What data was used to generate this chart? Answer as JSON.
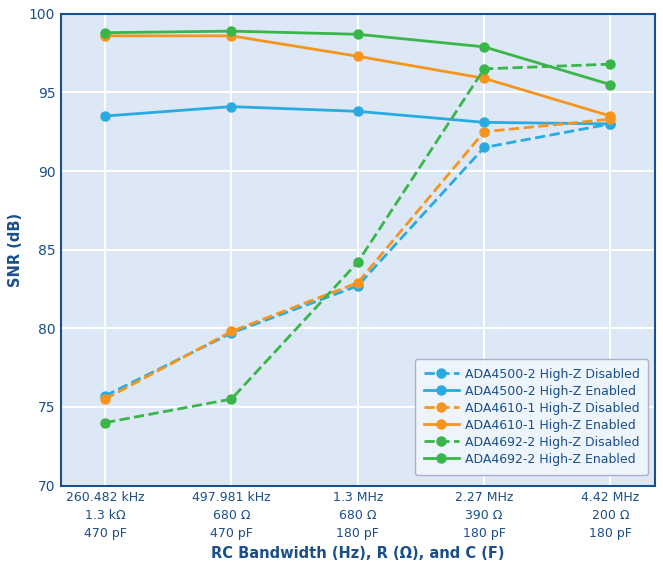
{
  "x_positions": [
    0,
    1,
    2,
    3,
    4
  ],
  "x_labels": [
    "260.482 kHz\n1.3 kΩ\n470 pF",
    "497.981 kHz\n680 Ω\n470 pF",
    "1.3 MHz\n680 Ω\n180 pF",
    "2.27 MHz\n390 Ω\n180 pF",
    "4.42 MHz\n200 Ω\n180 pF"
  ],
  "series": [
    {
      "label": "ADA4500-2 High-Z Disabled",
      "color": "#29abe2",
      "linestyle": "--",
      "marker": "o",
      "values": [
        75.7,
        79.7,
        82.7,
        91.5,
        93.0
      ]
    },
    {
      "label": "ADA4500-2 High-Z Enabled",
      "color": "#29abe2",
      "linestyle": "-",
      "marker": "o",
      "values": [
        93.5,
        94.1,
        93.8,
        93.1,
        93.0
      ]
    },
    {
      "label": "ADA4610-1 High-Z Disabled",
      "color": "#f7941d",
      "linestyle": "--",
      "marker": "o",
      "values": [
        75.5,
        79.8,
        82.9,
        92.5,
        93.3
      ]
    },
    {
      "label": "ADA4610-1 High-Z Enabled",
      "color": "#f7941d",
      "linestyle": "-",
      "marker": "o",
      "values": [
        98.6,
        98.6,
        97.3,
        95.9,
        93.5
      ]
    },
    {
      "label": "ADA4692-2 High-Z Disabled",
      "color": "#39b54a",
      "linestyle": "--",
      "marker": "o",
      "values": [
        74.0,
        75.5,
        84.2,
        96.5,
        96.8
      ]
    },
    {
      "label": "ADA4692-2 High-Z Enabled",
      "color": "#39b54a",
      "linestyle": "-",
      "marker": "o",
      "values": [
        98.8,
        98.9,
        98.7,
        97.9,
        95.5
      ]
    }
  ],
  "ylabel": "SNR (dB)",
  "xlabel": "RC Bandwidth (Hz), R (Ω), and C (F)",
  "ylim": [
    70,
    100
  ],
  "yticks": [
    70,
    75,
    80,
    85,
    90,
    95,
    100
  ],
  "bg_color": "#dce8f5",
  "grid_color": "#ffffff",
  "axis_color": "#1a4f8a",
  "legend_fontsize": 9.0,
  "label_fontsize": 10.5,
  "tick_fontsize": 9.0
}
